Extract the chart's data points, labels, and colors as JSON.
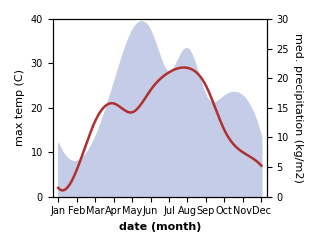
{
  "months": [
    "Jan",
    "Feb",
    "Mar",
    "Apr",
    "May",
    "Jun",
    "Jul",
    "Aug",
    "Sep",
    "Oct",
    "Nov",
    "Dec"
  ],
  "temperature": [
    2,
    6,
    17,
    21,
    19,
    24,
    28,
    29,
    25,
    15,
    10,
    7
  ],
  "precipitation": [
    9,
    6,
    10,
    19,
    28,
    28,
    21,
    25,
    17,
    17,
    17,
    10
  ],
  "temp_color": "#b03030",
  "precip_fill_color": "#c5cce8",
  "temp_ylim": [
    0,
    40
  ],
  "precip_ylim": [
    0,
    30
  ],
  "xlabel": "date (month)",
  "ylabel_left": "max temp (C)",
  "ylabel_right": "med. precipitation (kg/m2)",
  "label_fontsize": 8,
  "tick_fontsize": 7,
  "fig_width": 3.18,
  "fig_height": 2.47,
  "dpi": 100
}
